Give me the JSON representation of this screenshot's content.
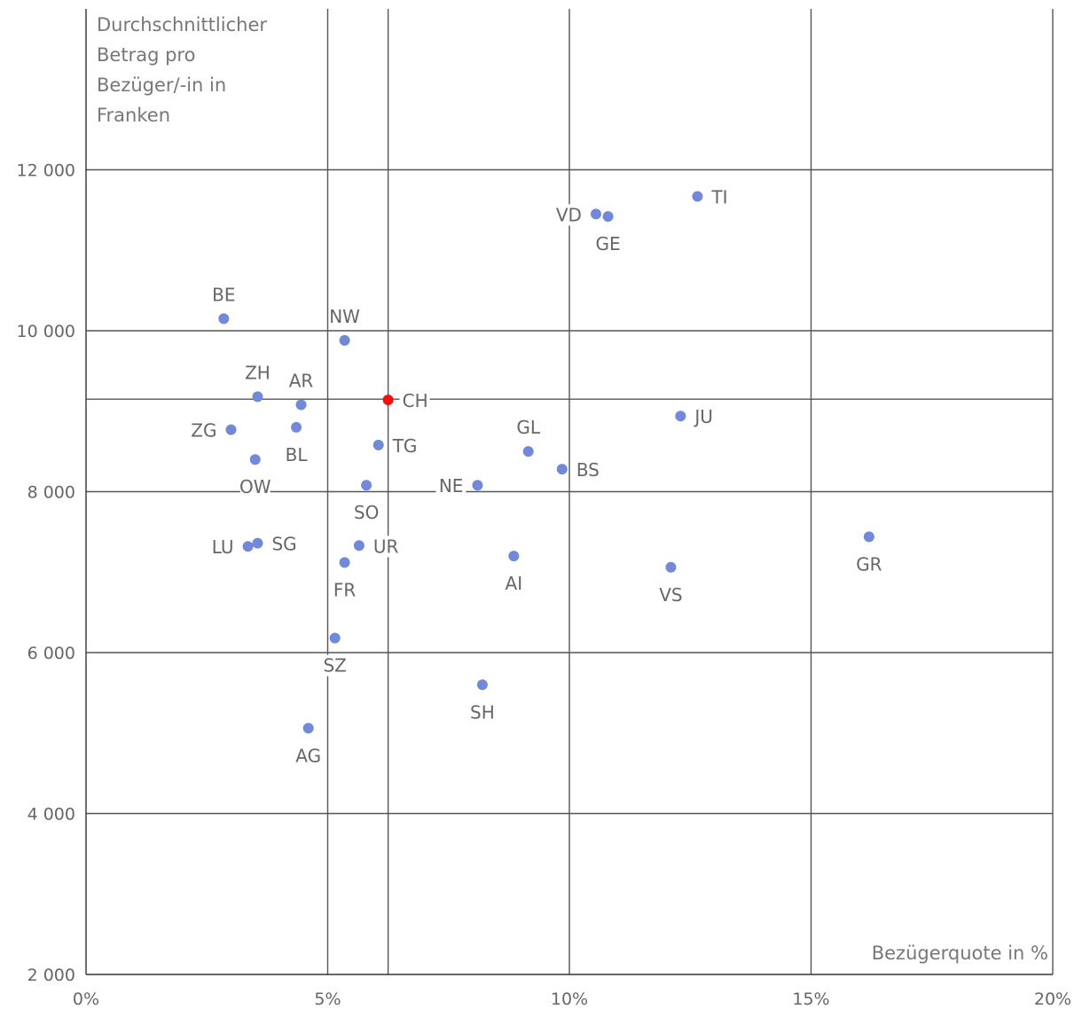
{
  "chart_data": {
    "type": "scatter",
    "xlabel": "Bezügerquote in %",
    "ylabel_lines": [
      "Durchschnittlicher",
      "Betrag pro",
      "Bezüger/-in in",
      "Franken"
    ],
    "xlim": [
      0,
      20
    ],
    "ylim": [
      2000,
      14000
    ],
    "x_ticks": [
      0,
      5,
      10,
      15,
      20
    ],
    "x_tick_labels": [
      "0%",
      "5%",
      "10%",
      "15%",
      "20%"
    ],
    "y_ticks": [
      2000,
      4000,
      6000,
      8000,
      10000,
      12000
    ],
    "y_tick_labels": [
      "2 000",
      "4 000",
      "6 000",
      "8 000",
      "10 000",
      "12 000"
    ],
    "reference": {
      "x": 6.25,
      "y": 9150
    },
    "grid": true,
    "colors": {
      "point": "#7189d8",
      "highlight": "#ee1111",
      "grid": "#555555"
    },
    "points": [
      {
        "label": "BE",
        "x": 2.85,
        "y": 10150,
        "pos": "above"
      },
      {
        "label": "NW",
        "x": 5.35,
        "y": 9880,
        "pos": "above"
      },
      {
        "label": "ZH",
        "x": 3.55,
        "y": 9180,
        "pos": "above"
      },
      {
        "label": "AR",
        "x": 4.45,
        "y": 9080,
        "pos": "above"
      },
      {
        "label": "CH",
        "x": 6.25,
        "y": 9140,
        "pos": "right",
        "highlight": true
      },
      {
        "label": "ZG",
        "x": 3.0,
        "y": 8770,
        "pos": "left"
      },
      {
        "label": "BL",
        "x": 4.35,
        "y": 8800,
        "pos": "below"
      },
      {
        "label": "TG",
        "x": 6.05,
        "y": 8580,
        "pos": "right"
      },
      {
        "label": "OW",
        "x": 3.5,
        "y": 8400,
        "pos": "below"
      },
      {
        "label": "SO",
        "x": 5.8,
        "y": 8080,
        "pos": "below"
      },
      {
        "label": "NE",
        "x": 8.1,
        "y": 8080,
        "pos": "left"
      },
      {
        "label": "GL",
        "x": 9.15,
        "y": 8500,
        "pos": "above"
      },
      {
        "label": "BS",
        "x": 9.85,
        "y": 8280,
        "pos": "right"
      },
      {
        "label": "JU",
        "x": 12.3,
        "y": 8940,
        "pos": "right"
      },
      {
        "label": "VD",
        "x": 10.55,
        "y": 11450,
        "pos": "left"
      },
      {
        "label": "GE",
        "x": 10.8,
        "y": 11420,
        "pos": "below"
      },
      {
        "label": "TI",
        "x": 12.65,
        "y": 11670,
        "pos": "right"
      },
      {
        "label": "LU",
        "x": 3.35,
        "y": 7320,
        "pos": "left"
      },
      {
        "label": "SG",
        "x": 3.55,
        "y": 7360,
        "pos": "right"
      },
      {
        "label": "UR",
        "x": 5.65,
        "y": 7330,
        "pos": "right"
      },
      {
        "label": "FR",
        "x": 5.35,
        "y": 7120,
        "pos": "below"
      },
      {
        "label": "AI",
        "x": 8.85,
        "y": 7200,
        "pos": "below"
      },
      {
        "label": "VS",
        "x": 12.1,
        "y": 7060,
        "pos": "below"
      },
      {
        "label": "GR",
        "x": 16.2,
        "y": 7440,
        "pos": "below"
      },
      {
        "label": "SZ",
        "x": 5.15,
        "y": 6180,
        "pos": "below"
      },
      {
        "label": "SH",
        "x": 8.2,
        "y": 5600,
        "pos": "below"
      },
      {
        "label": "AG",
        "x": 4.6,
        "y": 5060,
        "pos": "below"
      }
    ]
  }
}
